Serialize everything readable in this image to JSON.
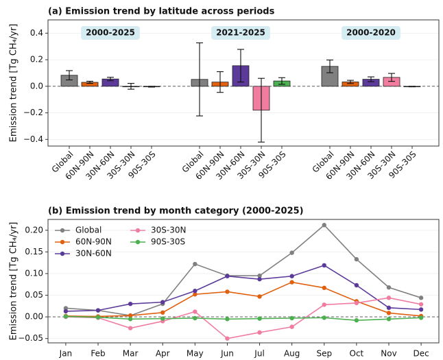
{
  "chart_data": [
    {
      "type": "bar",
      "title": "(a) Emission trend by latitude across periods",
      "ylabel": "Emission trend [Tg CH₄/yr]",
      "colors": [
        "#808080",
        "#e0600f",
        "#5b3a9a",
        "#f07ca0",
        "#4caf50"
      ],
      "groups": [
        {
          "name": "2000-2025",
          "categories": [
            "Global",
            "60N-90N",
            "30N-60N",
            "30S-30N",
            "90S-30S"
          ],
          "values": [
            0.083,
            0.03,
            0.055,
            0.0,
            -0.003
          ],
          "errors": [
            0.035,
            0.008,
            0.013,
            0.022,
            0.003
          ]
        },
        {
          "name": "2021-2025",
          "categories": [
            "Global",
            "60N-90N",
            "30N-60N",
            "30S-30N",
            "90S-30S"
          ],
          "values": [
            0.052,
            0.032,
            0.155,
            -0.18,
            0.04
          ],
          "errors": [
            0.275,
            0.078,
            0.123,
            0.24,
            0.025
          ]
        },
        {
          "name": "2000-2020",
          "categories": [
            "Global",
            "60N-90N",
            "30N-60N",
            "30S-30N",
            "90S-30S"
          ],
          "values": [
            0.15,
            0.033,
            0.053,
            0.067,
            -0.002
          ],
          "errors": [
            0.048,
            0.012,
            0.018,
            0.03,
            0.002
          ]
        }
      ],
      "ylim": [
        -0.45,
        0.5
      ],
      "yticks": [
        {
          "value": -0.4,
          "label": "−0.4"
        },
        {
          "value": -0.2,
          "label": "−0.2"
        },
        {
          "value": 0,
          "label": "0.0"
        },
        0.2,
        0.4
      ],
      "grid": true,
      "zero_line": true
    },
    {
      "type": "line",
      "title": "(b) Emission trend by month category (2000-2025)",
      "ylabel": "Emission trend [Tg CH₄/yr]",
      "categories": [
        "Jan",
        "Feb",
        "Mar",
        "Apr",
        "May",
        "Jun",
        "Jul",
        "Aug",
        "Sep",
        "Oct",
        "Nov",
        "Dec"
      ],
      "series": [
        {
          "name": "Global",
          "color": "#808080",
          "values": [
            0.02,
            0.015,
            0.003,
            0.03,
            0.122,
            0.095,
            0.095,
            0.148,
            0.212,
            0.133,
            0.068,
            0.044
          ]
        },
        {
          "name": "60N-90N",
          "color": "#e0600f",
          "values": [
            0.002,
            0.001,
            0.003,
            0.01,
            0.052,
            0.058,
            0.047,
            0.08,
            0.067,
            0.036,
            0.009,
            0.002
          ]
        },
        {
          "name": "30N-60N",
          "color": "#5b3a9a",
          "values": [
            0.013,
            0.015,
            0.03,
            0.034,
            0.06,
            0.094,
            0.087,
            0.094,
            0.119,
            0.073,
            0.021,
            0.017
          ]
        },
        {
          "name": "30S-30N",
          "color": "#f07ca0",
          "values": [
            0.0,
            -0.002,
            -0.026,
            -0.01,
            0.012,
            -0.05,
            -0.036,
            -0.023,
            0.028,
            0.032,
            0.044,
            0.029
          ]
        },
        {
          "name": "90S-30S",
          "color": "#4caf50",
          "values": [
            0.001,
            -0.001,
            -0.005,
            -0.004,
            -0.003,
            -0.005,
            -0.004,
            -0.003,
            -0.002,
            -0.008,
            -0.005,
            -0.002
          ]
        }
      ],
      "ylim": [
        -0.06,
        0.225
      ],
      "yticks": [
        {
          "value": -0.05,
          "label": "−0.05"
        },
        {
          "value": 0,
          "label": "0.00"
        },
        0.05,
        {
          "value": 0.1,
          "label": "0.10"
        },
        0.15,
        {
          "value": 0.2,
          "label": "0.20"
        }
      ],
      "grid": true,
      "zero_line": true,
      "legend": "upper left"
    }
  ]
}
